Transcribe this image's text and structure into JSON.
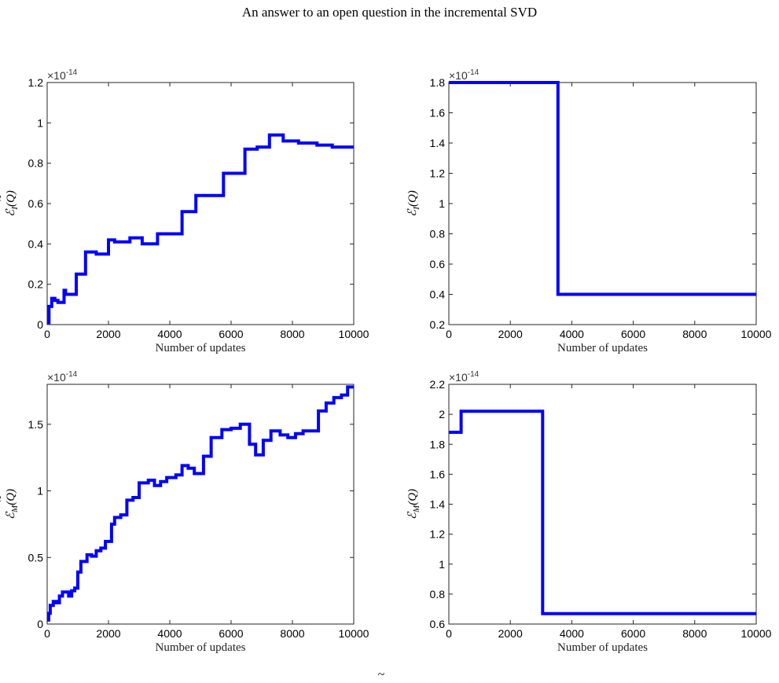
{
  "header": {
    "title": "An answer to an open question in the incremental SVD"
  },
  "caption_fragment": "~",
  "chart_data": [
    {
      "type": "line",
      "ylabel": "E_I(Q~)",
      "ylabel_math": {
        "base": "ℰ",
        "sub": "I",
        "arg": "Q",
        "tilde": true
      },
      "xlabel": "Number of updates",
      "xlim": [
        0,
        10000
      ],
      "ylim": [
        0,
        1.2
      ],
      "xticks": [
        0,
        2000,
        4000,
        6000,
        8000,
        10000
      ],
      "yticks": [
        0,
        0.2,
        0.4,
        0.6,
        0.8,
        1,
        1.2
      ],
      "ytick_labels": [
        "0",
        "0.2",
        "0.4",
        "0.6",
        "0.8",
        "1",
        "1.2"
      ],
      "scale_label": "×10",
      "scale_exponent": "-14",
      "line_color": "#0000ff",
      "series": [
        {
          "x": [
            0,
            60,
            60,
            150,
            150,
            250,
            250,
            350,
            350,
            550,
            550,
            600,
            600,
            700,
            700,
            950,
            950,
            1250,
            1250,
            1600,
            1600,
            2000,
            2000,
            2200,
            2200,
            2700,
            2700,
            3000,
            3000,
            3100,
            3100,
            3600,
            3600,
            4400,
            4400,
            4850,
            4850,
            5200,
            5200,
            5750,
            5750,
            6450,
            6450,
            6850,
            6850,
            7250,
            7250,
            7700,
            7700,
            8200,
            8200,
            8800,
            8800,
            9300,
            9300,
            10000
          ],
          "y": [
            0.01,
            0.01,
            0.09,
            0.09,
            0.13,
            0.13,
            0.12,
            0.12,
            0.11,
            0.11,
            0.17,
            0.17,
            0.15,
            0.15,
            0.15,
            0.15,
            0.25,
            0.25,
            0.36,
            0.36,
            0.35,
            0.35,
            0.42,
            0.42,
            0.41,
            0.41,
            0.43,
            0.43,
            0.43,
            0.43,
            0.4,
            0.4,
            0.45,
            0.45,
            0.56,
            0.56,
            0.64,
            0.64,
            0.64,
            0.64,
            0.75,
            0.75,
            0.87,
            0.87,
            0.88,
            0.88,
            0.94,
            0.94,
            0.91,
            0.91,
            0.9,
            0.9,
            0.89,
            0.89,
            0.88,
            0.88
          ]
        }
      ]
    },
    {
      "type": "line",
      "ylabel": "E_I(Q)",
      "ylabel_math": {
        "base": "ℰ",
        "sub": "I",
        "arg": "Q",
        "tilde": false
      },
      "xlabel": "Number of updates",
      "xlim": [
        0,
        10000
      ],
      "ylim": [
        0.2,
        1.8
      ],
      "xticks": [
        0,
        2000,
        4000,
        6000,
        8000,
        10000
      ],
      "yticks": [
        0.2,
        0.4,
        0.6,
        0.8,
        1,
        1.2,
        1.4,
        1.6,
        1.8
      ],
      "ytick_labels": [
        "0.2",
        "0.4",
        "0.6",
        "0.8",
        "1",
        "1.2",
        "1.4",
        "1.6",
        "1.8"
      ],
      "scale_label": "×10",
      "scale_exponent": "-14",
      "line_color": "#0000ff",
      "series": [
        {
          "x": [
            0,
            3550,
            3550,
            10000
          ],
          "y": [
            1.8,
            1.8,
            0.4,
            0.4
          ]
        }
      ]
    },
    {
      "type": "line",
      "ylabel": "E_M(Q~)",
      "ylabel_math": {
        "base": "ℰ",
        "sub": "M",
        "arg": "Q",
        "tilde": true
      },
      "xlabel": "Number of updates",
      "xlim": [
        0,
        10000
      ],
      "ylim": [
        0,
        1.8
      ],
      "xticks": [
        0,
        2000,
        4000,
        6000,
        8000,
        10000
      ],
      "yticks": [
        0,
        0.5,
        1,
        1.5
      ],
      "ytick_labels": [
        "0",
        "0.5",
        "1",
        "1.5"
      ],
      "scale_label": "×10",
      "scale_exponent": "-14",
      "line_color": "#0000ff",
      "series": [
        {
          "x": [
            0,
            50,
            50,
            100,
            100,
            200,
            200,
            300,
            300,
            400,
            400,
            500,
            500,
            600,
            600,
            700,
            700,
            800,
            800,
            900,
            900,
            1000,
            1000,
            1100,
            1100,
            1300,
            1300,
            1450,
            1450,
            1600,
            1600,
            1750,
            1750,
            1900,
            1900,
            2100,
            2100,
            2200,
            2200,
            2400,
            2400,
            2600,
            2600,
            2800,
            2800,
            3000,
            3000,
            3300,
            3300,
            3500,
            3500,
            3700,
            3700,
            3900,
            3900,
            4200,
            4200,
            4400,
            4400,
            4600,
            4600,
            4800,
            4800,
            5100,
            5100,
            5350,
            5350,
            5700,
            5700,
            6000,
            6000,
            6300,
            6300,
            6500,
            6500,
            6600,
            6600,
            6800,
            6800,
            7050,
            7050,
            7300,
            7300,
            7600,
            7600,
            7850,
            7850,
            8100,
            8100,
            8350,
            8350,
            8550,
            8550,
            8850,
            8850,
            9100,
            9100,
            9350,
            9350,
            9600,
            9600,
            9800,
            9800,
            10000
          ],
          "y": [
            0.03,
            0.03,
            0.08,
            0.08,
            0.14,
            0.14,
            0.17,
            0.17,
            0.16,
            0.16,
            0.21,
            0.21,
            0.24,
            0.24,
            0.24,
            0.24,
            0.21,
            0.21,
            0.25,
            0.25,
            0.27,
            0.27,
            0.39,
            0.39,
            0.47,
            0.47,
            0.52,
            0.52,
            0.51,
            0.51,
            0.55,
            0.55,
            0.57,
            0.57,
            0.62,
            0.62,
            0.75,
            0.75,
            0.8,
            0.8,
            0.82,
            0.82,
            0.93,
            0.93,
            0.95,
            0.95,
            1.06,
            1.06,
            1.08,
            1.08,
            1.04,
            1.04,
            1.07,
            1.07,
            1.1,
            1.1,
            1.12,
            1.12,
            1.19,
            1.19,
            1.17,
            1.17,
            1.13,
            1.13,
            1.26,
            1.26,
            1.4,
            1.4,
            1.46,
            1.46,
            1.47,
            1.47,
            1.5,
            1.5,
            1.5,
            1.5,
            1.35,
            1.35,
            1.27,
            1.27,
            1.38,
            1.38,
            1.45,
            1.45,
            1.42,
            1.42,
            1.4,
            1.4,
            1.43,
            1.43,
            1.45,
            1.45,
            1.45,
            1.45,
            1.6,
            1.6,
            1.66,
            1.66,
            1.7,
            1.7,
            1.72,
            1.72,
            1.78,
            1.78
          ]
        }
      ]
    },
    {
      "type": "line",
      "ylabel": "E_M(Q)",
      "ylabel_math": {
        "base": "ℰ",
        "sub": "M",
        "arg": "Q",
        "tilde": false
      },
      "xlabel": "Number of updates",
      "xlim": [
        0,
        10000
      ],
      "ylim": [
        0.6,
        2.2
      ],
      "xticks": [
        0,
        2000,
        4000,
        6000,
        8000,
        10000
      ],
      "yticks": [
        0.6,
        0.8,
        1,
        1.2,
        1.4,
        1.6,
        1.8,
        2,
        2.2
      ],
      "ytick_labels": [
        "0.6",
        "0.8",
        "1",
        "1.2",
        "1.4",
        "1.6",
        "1.8",
        "2",
        "2.2"
      ],
      "scale_label": "×10",
      "scale_exponent": "-14",
      "line_color": "#0000ff",
      "series": [
        {
          "x": [
            0,
            400,
            400,
            3050,
            3050,
            10000
          ],
          "y": [
            1.88,
            1.88,
            2.02,
            2.02,
            0.67,
            0.67
          ]
        }
      ]
    }
  ]
}
